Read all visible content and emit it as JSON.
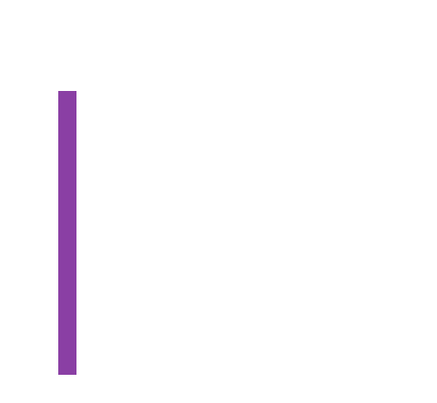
{
  "page": {
    "background_color": "#ffffff"
  },
  "accent_bar": {
    "color": "#8a3fa4"
  }
}
